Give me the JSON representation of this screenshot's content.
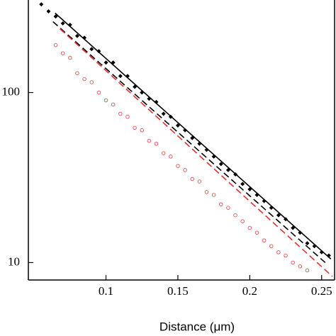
{
  "chart_data": {
    "type": "scatter",
    "x_label": "Distance (μm)",
    "xlim": [
      0.046,
      0.259
    ],
    "xticks": [
      0.1,
      0.15,
      0.2,
      0.25
    ],
    "ylim": [
      7.9,
      350
    ],
    "yticks": [
      10,
      100
    ],
    "log_y": true,
    "series": [
      {
        "color": "#000000",
        "marker": "diamond",
        "x": [
          0.055,
          0.06,
          0.065,
          0.07,
          0.075,
          0.08,
          0.085,
          0.09,
          0.095,
          0.1,
          0.105,
          0.11,
          0.115,
          0.12,
          0.125,
          0.13,
          0.135,
          0.14,
          0.145,
          0.15,
          0.155,
          0.16,
          0.165,
          0.17,
          0.175,
          0.18,
          0.185,
          0.19,
          0.195,
          0.2,
          0.205,
          0.21,
          0.215,
          0.22,
          0.225,
          0.23,
          0.235,
          0.24,
          0.245,
          0.25,
          0.255
        ],
        "values": [
          330,
          300,
          280,
          255,
          250,
          215,
          210,
          180,
          175,
          150,
          150,
          125,
          125,
          108,
          100,
          92,
          88,
          75,
          72,
          64,
          60,
          54,
          50,
          46,
          42,
          38,
          35,
          33,
          29,
          27,
          25,
          23,
          21,
          19,
          18,
          16,
          15,
          13,
          12.5,
          11.5,
          11
        ]
      },
      {
        "color": "#e05050",
        "marker": "open-circle",
        "x": [
          0.065,
          0.07,
          0.075,
          0.08,
          0.085,
          0.09,
          0.095,
          0.1,
          0.105,
          0.11,
          0.115,
          0.12,
          0.125,
          0.13,
          0.135,
          0.14,
          0.145,
          0.15,
          0.155,
          0.16,
          0.165,
          0.17,
          0.175,
          0.18,
          0.185,
          0.19,
          0.195,
          0.2,
          0.205,
          0.21,
          0.215,
          0.22,
          0.225,
          0.23,
          0.235,
          0.24
        ],
        "values": [
          190,
          170,
          160,
          130,
          120,
          115,
          100,
          90,
          85,
          75,
          72,
          62,
          60,
          52,
          50,
          44,
          42,
          37,
          35,
          31,
          30,
          26,
          25,
          22,
          21,
          19,
          17.5,
          16,
          15,
          13.5,
          12.5,
          11.5,
          11,
          10,
          9.5,
          9
        ]
      },
      {
        "type": "line",
        "color": "#000000",
        "dash": false,
        "x": [
          0.0646,
          0.2564
        ],
        "values": [
          293,
          10.5
        ]
      },
      {
        "type": "line",
        "color": "#000000",
        "dash": true,
        "x": [
          0.0631,
          0.2525
        ],
        "values": [
          261,
          10
        ]
      },
      {
        "type": "line",
        "color": "#e03030",
        "dash": true,
        "x": [
          0.068,
          0.2574
        ],
        "values": [
          237,
          8.3
        ]
      }
    ]
  }
}
